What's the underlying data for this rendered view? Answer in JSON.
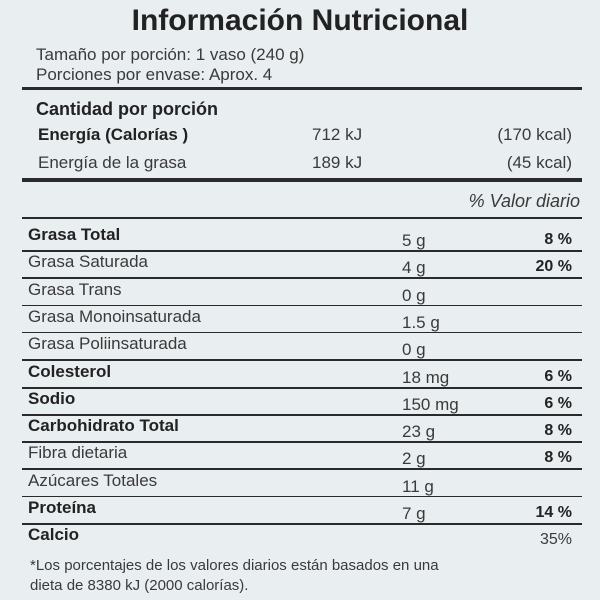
{
  "header": {
    "title": "Información Nutricional",
    "serving_size": "Tamaño por porción: 1 vaso (240 g)",
    "servings": "Porciones por envase: Aprox. 4"
  },
  "energy": {
    "heading": "Cantidad por porción",
    "rows": [
      {
        "name": "Energía  (Calorías )",
        "kj": "712 kJ",
        "kcal": "(170 kcal)",
        "bold": true
      },
      {
        "name": "Energía de la grasa",
        "kj": "189 kJ",
        "kcal": "(45 kcal)",
        "bold": false
      }
    ]
  },
  "table": {
    "dv_header": "% Valor diario",
    "rows": [
      {
        "name": "Grasa Total",
        "amount": "5 g",
        "dv": "8 %",
        "bold": true
      },
      {
        "name": "Grasa Saturada",
        "amount": "4 g",
        "dv": "20 %",
        "bold": false
      },
      {
        "name": "Grasa Trans",
        "amount": "0 g",
        "bold": false
      },
      {
        "name": "Grasa Monoinsaturada",
        "amount": "1.5 g",
        "bold": false
      },
      {
        "name": "Grasa Poliinsaturada",
        "amount": "0 g",
        "bold": false
      },
      {
        "name": "Colesterol",
        "amount": "18 mg",
        "dv": "6 %",
        "bold": true
      },
      {
        "name": "Sodio",
        "amount": "150 mg",
        "dv": "6 %",
        "bold": true
      },
      {
        "name": "Carbohidrato Total",
        "amount": "23 g",
        "dv": "8 %",
        "bold": true
      },
      {
        "name": "Fibra dietaria",
        "amount": "2 g",
        "dv": "8 %",
        "bold": false
      },
      {
        "name": "Azúcares Totales",
        "amount": "11 g",
        "bold": false
      },
      {
        "name": "Proteína",
        "amount": "7 g",
        "dv": "14 %",
        "bold": true
      },
      {
        "name": "Calcio",
        "dv": "35%",
        "bold": true
      }
    ]
  },
  "footnote": {
    "lines": [
      "*Los porcentajes de los valores diarios están basados en una",
      "dieta de 8380 kJ (2000 calorías)."
    ]
  }
}
